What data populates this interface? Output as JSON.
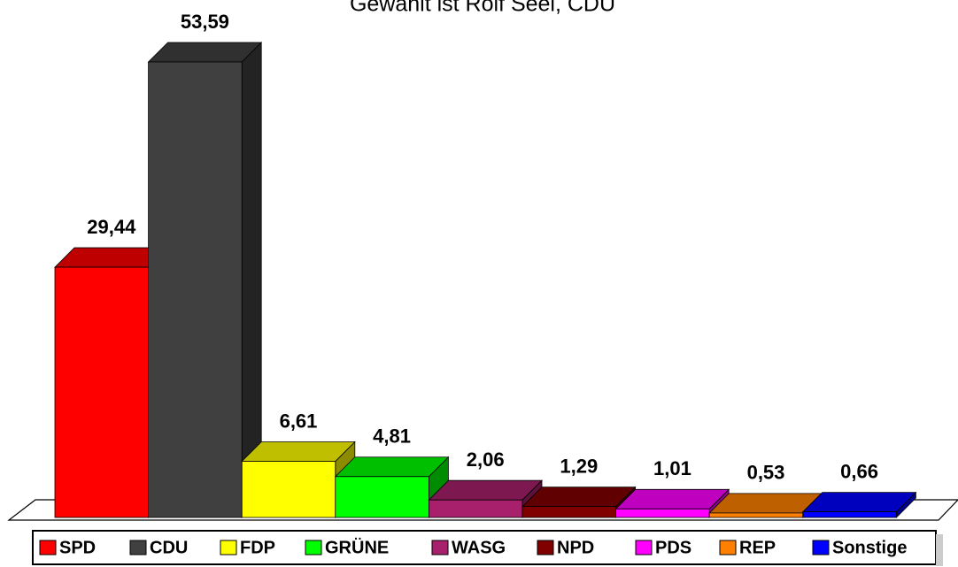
{
  "chart_data": {
    "type": "bar3d",
    "title": "Gewählt ist Rolf Seel, CDU",
    "categories": [
      "SPD",
      "CDU",
      "FDP",
      "GRÜNE",
      "WASG",
      "NPD",
      "PDS",
      "REP",
      "Sonstige"
    ],
    "values": [
      29.44,
      53.59,
      6.61,
      4.81,
      2.06,
      1.29,
      1.01,
      0.53,
      0.66
    ],
    "value_labels": [
      "29,44",
      "53,59",
      "6,61",
      "4,81",
      "2,06",
      "1,29",
      "1,01",
      "0,53",
      "0,66"
    ],
    "colors": [
      "#ff0000",
      "#404040",
      "#ffff00",
      "#00ff00",
      "#a8206c",
      "#800000",
      "#ff00ff",
      "#ff8000",
      "#0000ff"
    ],
    "legend": "bottom"
  }
}
